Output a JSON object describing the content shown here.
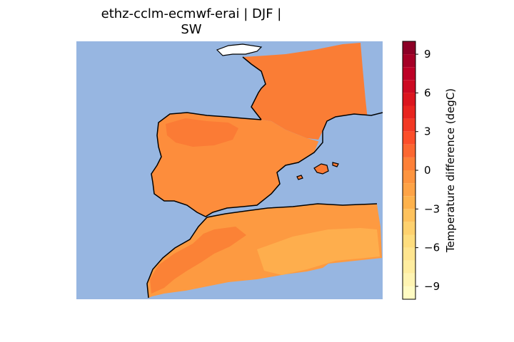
{
  "figure": {
    "title_line_1": "ethz-cclm-ecmwf-erai | DJF |",
    "title_line_2": "SW"
  },
  "colorbar": {
    "label": "Temperature difference (degC)",
    "range": [
      -10,
      10
    ],
    "ticks": [
      {
        "value": 9,
        "text": "9"
      },
      {
        "value": 6,
        "text": "6"
      },
      {
        "value": 3,
        "text": "3"
      },
      {
        "value": 0,
        "text": "0"
      },
      {
        "value": -3,
        "text": "−3"
      },
      {
        "value": -6,
        "text": "−6"
      },
      {
        "value": -9,
        "text": "−9"
      }
    ],
    "colors": [
      "#ffffcc",
      "#ffeda0",
      "#fed976",
      "#feb24c",
      "#fd8d3c",
      "#fc4e2a",
      "#e31a1c",
      "#bd0026",
      "#800026"
    ]
  },
  "map": {
    "ocean_color": "#97b6e1",
    "land_color_main": "#fd8d3c",
    "land_color_warm": "#fb7b35",
    "land_color_cool": "#feab4a",
    "region": "Iberian Peninsula, France and North Africa (SW domain)"
  }
}
